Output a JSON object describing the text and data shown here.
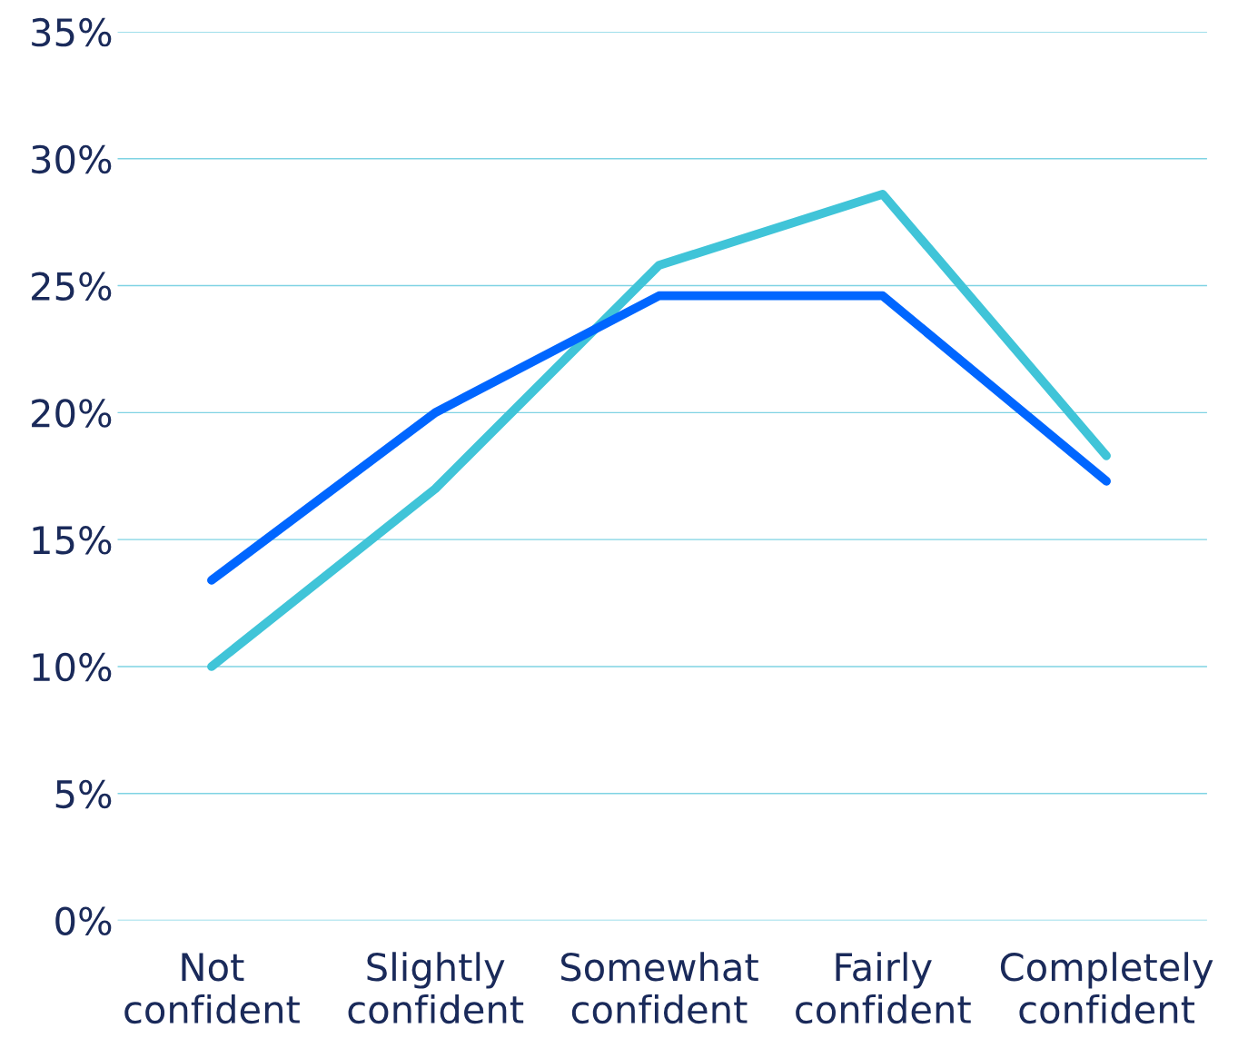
{
  "chart_data": {
    "type": "line",
    "categories": [
      "Not\nconfident",
      "Slightly\nconfident",
      "Somewhat\nconfident",
      "Fairly\nconfident",
      "Completely\nconfident"
    ],
    "series": [
      {
        "color": "#40c4d8",
        "values": [
          10.0,
          17.0,
          25.8,
          28.6,
          18.3
        ]
      },
      {
        "color": "#0066ff",
        "values": [
          13.4,
          20.0,
          24.6,
          24.6,
          17.3
        ]
      }
    ],
    "ylim": [
      0,
      35
    ],
    "yticks": [
      {
        "value": 0,
        "label": "0%"
      },
      {
        "value": 5,
        "label": "5%"
      },
      {
        "value": 10,
        "label": "10%"
      },
      {
        "value": 15,
        "label": "15%"
      },
      {
        "value": 20,
        "label": "20%"
      },
      {
        "value": 25,
        "label": "25%"
      },
      {
        "value": 30,
        "label": "30%"
      },
      {
        "value": 35,
        "label": "35%"
      }
    ],
    "grid": "y",
    "legend": false,
    "marker": "none",
    "line_style": "solid"
  }
}
